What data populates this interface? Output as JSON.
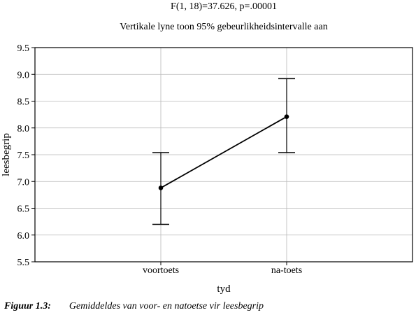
{
  "chart_data": {
    "type": "line",
    "title": "F(1, 18)=37.626, p=.00001",
    "subtitle": "Vertikale lyne toon 95% gebeurlikheidsintervalle aan",
    "xlabel": "tyd",
    "ylabel": "leesbegrip",
    "categories": [
      "voortoets",
      "na-toets"
    ],
    "series": [
      {
        "values": [
          6.88,
          8.21
        ],
        "ci_low": [
          6.2,
          7.54
        ],
        "ci_high": [
          7.54,
          8.92
        ]
      }
    ],
    "ylim": [
      5.5,
      9.5
    ],
    "yticks": [
      "5.5",
      "6.0",
      "6.5",
      "7.0",
      "7.5",
      "8.0",
      "8.5",
      "9.0",
      "9.5"
    ],
    "grid": true,
    "legend": "none"
  },
  "caption": {
    "label": "Figuur 1.3:",
    "text": "Gemiddeldes van voor- en natoetse vir leesbegrip"
  }
}
